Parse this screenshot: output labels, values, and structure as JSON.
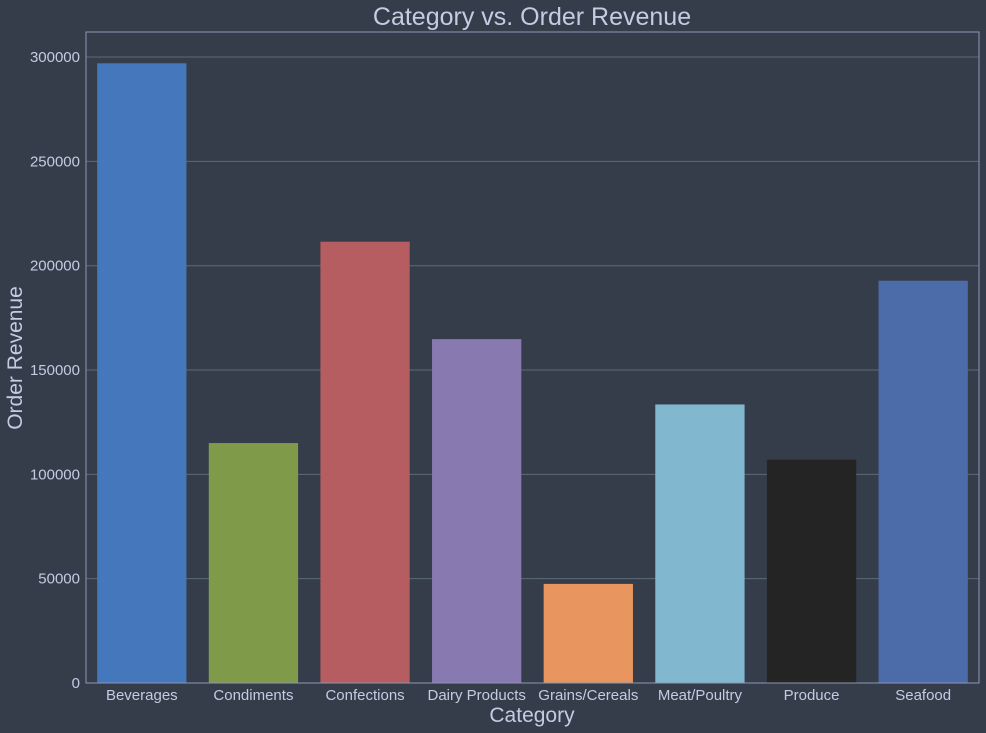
{
  "chart_data": {
    "type": "bar",
    "title": "Category vs. Order Revenue",
    "xlabel": "Category",
    "ylabel": "Order Revenue",
    "categories": [
      "Beverages",
      "Condiments",
      "Confections",
      "Dairy Products",
      "Grains/Cereals",
      "Meat/Poultry",
      "Produce",
      "Seafood"
    ],
    "values": [
      297000,
      115000,
      211500,
      164800,
      47500,
      133500,
      107000,
      192800
    ],
    "colors": [
      "#4477bb",
      "#7f9a48",
      "#b55d60",
      "#887ab0",
      "#e8955f",
      "#82b7d0",
      "#242424",
      "#4c6ba9"
    ],
    "ylim": [
      0,
      312000
    ],
    "yticks": [
      0,
      50000,
      100000,
      150000,
      200000,
      250000,
      300000
    ],
    "ytick_labels": [
      "0",
      "50000",
      "100000",
      "150000",
      "200000",
      "250000",
      "300000"
    ],
    "grid": true,
    "background": "#353c4a"
  }
}
